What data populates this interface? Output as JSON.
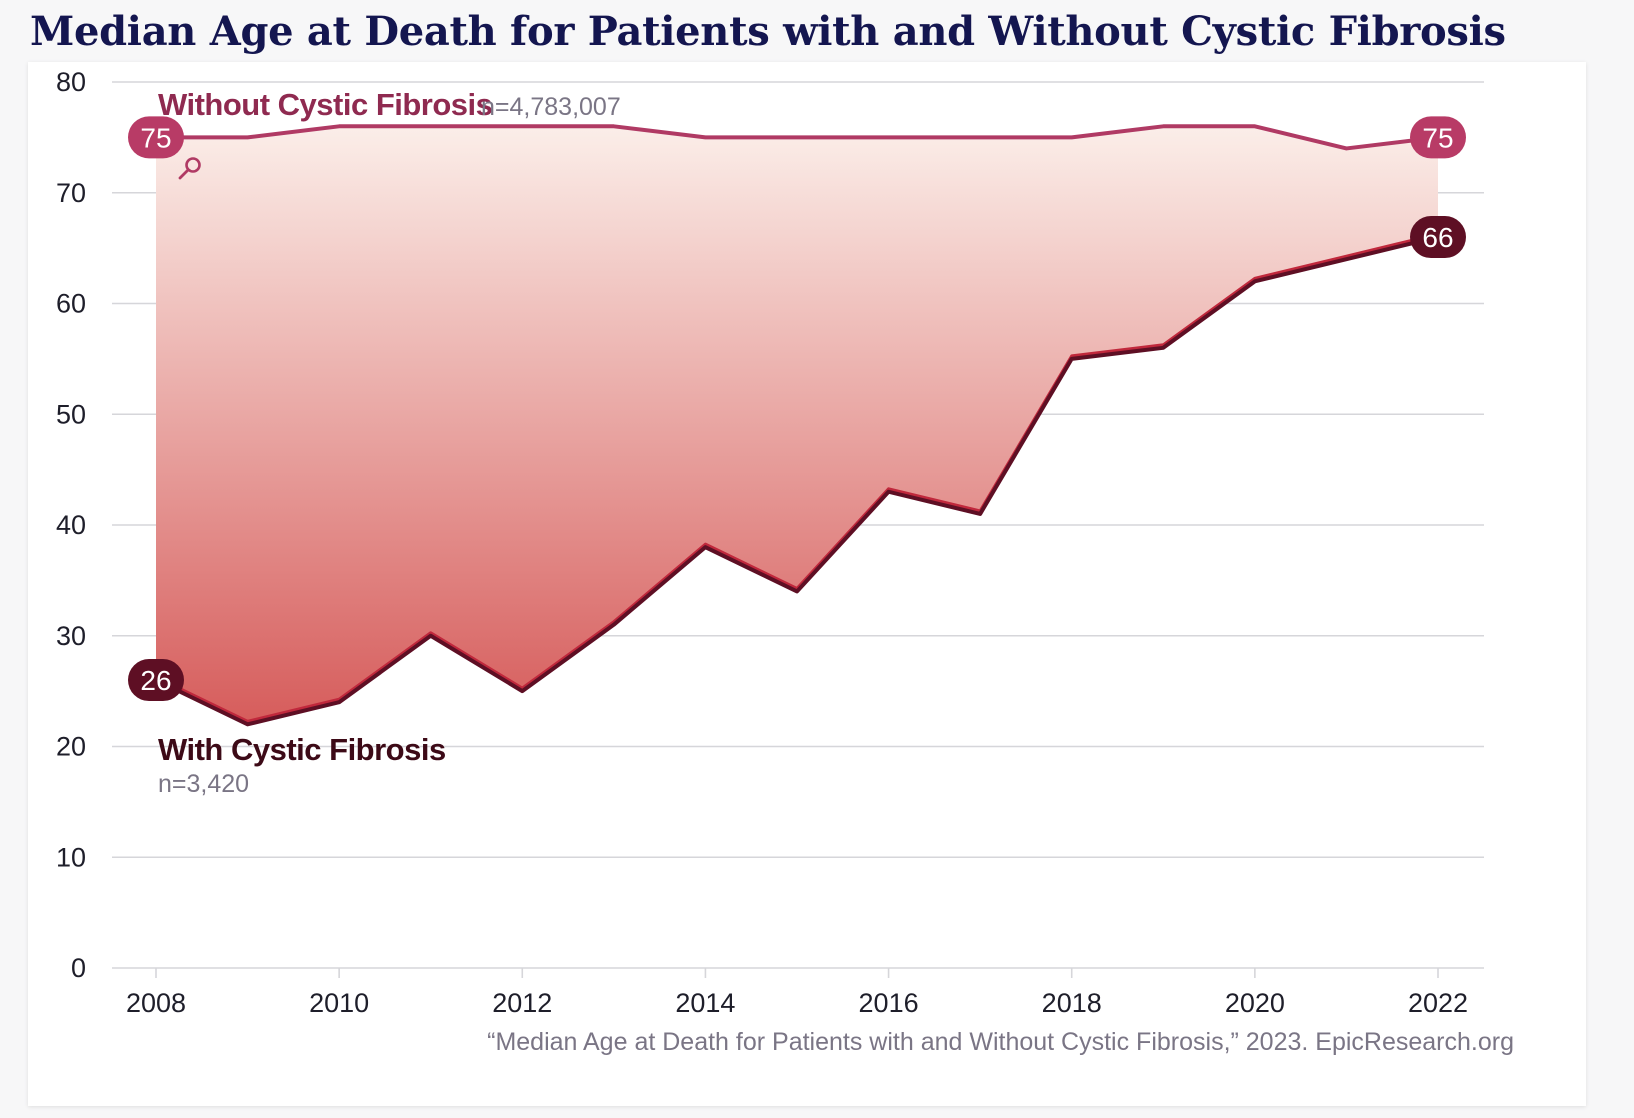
{
  "title": "Median Age at Death for Patients with and Without Cystic Fibrosis",
  "source": "“Median Age at Death for Patients with and Without Cystic Fibrosis,” 2023. EpicResearch.org",
  "colors": {
    "without_cf": "#b03a64",
    "without_cf_label": "#8f2a50",
    "with_cf": "#5e0f24",
    "with_cf_label": "#3d0a17",
    "fill_top": "#fbeee9",
    "fill_bottom": "#d65c5b"
  },
  "icons": {
    "zoom": "magnifier-icon"
  },
  "chart_data": {
    "type": "line",
    "title": "Median Age at Death for Patients with and Without Cystic Fibrosis",
    "x": [
      2008,
      2009,
      2010,
      2011,
      2012,
      2013,
      2014,
      2015,
      2016,
      2017,
      2018,
      2019,
      2020,
      2021,
      2022
    ],
    "x_ticks": [
      "2008",
      "2010",
      "2012",
      "2014",
      "2016",
      "2018",
      "2020",
      "2022"
    ],
    "y_ticks": [
      "0",
      "10",
      "20",
      "30",
      "40",
      "50",
      "60",
      "70",
      "80"
    ],
    "ylim": [
      0,
      80
    ],
    "xlim": [
      2008,
      2022
    ],
    "grid": true,
    "fill_between_series": true,
    "series": [
      {
        "name": "Without Cystic Fibrosis",
        "n_label": "n=4,783,007",
        "values": [
          75,
          75,
          76,
          76,
          76,
          76,
          75,
          75,
          75,
          75,
          75,
          76,
          76,
          74,
          75
        ],
        "start_label": "75",
        "end_label": "75"
      },
      {
        "name": "With Cystic Fibrosis",
        "n_label": "n=3,420",
        "values": [
          26,
          22,
          24,
          30,
          25,
          31,
          38,
          34,
          43,
          41,
          55,
          56,
          62,
          64,
          66
        ],
        "start_label": "26",
        "end_label": "66"
      }
    ]
  }
}
